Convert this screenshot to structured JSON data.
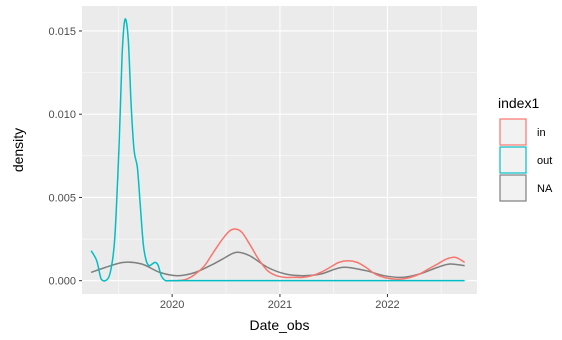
{
  "chart_data": {
    "type": "line",
    "title": "",
    "xlabel": "Date_obs",
    "ylabel": "density",
    "x_tick_labels": [
      "2020",
      "2021",
      "2022"
    ],
    "y_tick_labels": [
      "0.000",
      "0.005",
      "0.010",
      "0.015"
    ],
    "y_ticks": [
      0,
      0.005,
      0.01,
      0.015
    ],
    "xlim": [
      "2019-03-01",
      "2022-11-01"
    ],
    "ylim": [
      -0.0008,
      0.0165
    ],
    "grid": true,
    "legend": {
      "title": "index1",
      "position": "right",
      "entries": [
        {
          "name": "in",
          "color": "#F8766D"
        },
        {
          "name": "out",
          "color": "#00BFC4"
        },
        {
          "name": "NA",
          "color": "#7F7F7F"
        }
      ]
    },
    "series": [
      {
        "name": "in",
        "color": "#F8766D",
        "x": [
          "2019-12-20",
          "2020-01-20",
          "2020-02-20",
          "2020-03-20",
          "2020-04-20",
          "2020-05-20",
          "2020-06-20",
          "2020-07-15",
          "2020-08-05",
          "2020-08-25",
          "2020-09-20",
          "2020-10-20",
          "2020-11-20",
          "2020-12-20",
          "2021-01-20",
          "2021-02-20",
          "2021-03-20",
          "2021-04-20",
          "2021-05-20",
          "2021-06-20",
          "2021-07-20",
          "2021-08-20",
          "2021-09-20",
          "2021-10-20",
          "2021-11-20",
          "2021-12-20",
          "2022-01-20",
          "2022-02-20",
          "2022-03-20",
          "2022-04-20",
          "2022-05-20",
          "2022-06-20",
          "2022-07-20",
          "2022-08-20",
          "2022-09-20"
        ],
        "values": [
          0.0,
          0.0,
          0.0001,
          0.0004,
          0.0009,
          0.0017,
          0.0025,
          0.003,
          0.0031,
          0.0029,
          0.0022,
          0.0013,
          0.0006,
          0.0003,
          0.0002,
          0.0002,
          0.0002,
          0.0003,
          0.0005,
          0.0008,
          0.0011,
          0.0012,
          0.0011,
          0.0008,
          0.0004,
          0.0002,
          0.0001,
          0.0001,
          0.0002,
          0.0004,
          0.0007,
          0.001,
          0.0013,
          0.0014,
          0.0011
        ]
      },
      {
        "name": "out",
        "color": "#00BFC4",
        "x": [
          "2019-04-01",
          "2019-04-20",
          "2019-05-05",
          "2019-05-20",
          "2019-06-05",
          "2019-06-20",
          "2019-07-05",
          "2019-07-15",
          "2019-07-25",
          "2019-08-05",
          "2019-08-15",
          "2019-08-25",
          "2019-09-05",
          "2019-09-15",
          "2019-09-25",
          "2019-10-05",
          "2019-10-15",
          "2019-10-25",
          "2019-11-05",
          "2019-11-15",
          "2019-11-25",
          "2019-12-10",
          "2020-01-01",
          "2020-06-01",
          "2021-01-01",
          "2021-06-01",
          "2022-01-01",
          "2022-06-01",
          "2022-09-20"
        ],
        "values": [
          0.0018,
          0.0012,
          0.0001,
          0.0,
          0.0005,
          0.0025,
          0.0082,
          0.0135,
          0.0157,
          0.0145,
          0.0105,
          0.0078,
          0.0068,
          0.0045,
          0.0022,
          0.0012,
          0.0009,
          0.001,
          0.0011,
          0.0009,
          0.0003,
          0.0,
          0.0,
          0.0,
          0.0,
          0.0,
          0.0,
          0.0,
          0.0
        ]
      },
      {
        "name": "NA",
        "color": "#7F7F7F",
        "x": [
          "2019-04-01",
          "2019-05-20",
          "2019-07-20",
          "2019-09-20",
          "2019-11-20",
          "2020-01-20",
          "2020-03-20",
          "2020-05-20",
          "2020-06-20",
          "2020-08-05",
          "2020-09-20",
          "2020-11-20",
          "2021-01-20",
          "2021-03-20",
          "2021-05-20",
          "2021-08-01",
          "2021-10-20",
          "2021-12-20",
          "2022-02-20",
          "2022-04-20",
          "2022-06-20",
          "2022-08-01",
          "2022-09-20"
        ],
        "values": [
          0.0005,
          0.0008,
          0.0011,
          0.001,
          0.0005,
          0.0003,
          0.0005,
          0.001,
          0.0013,
          0.0017,
          0.0015,
          0.0008,
          0.0004,
          0.0003,
          0.0004,
          0.0008,
          0.0006,
          0.0003,
          0.0002,
          0.0004,
          0.0008,
          0.001,
          0.0009
        ]
      }
    ]
  }
}
